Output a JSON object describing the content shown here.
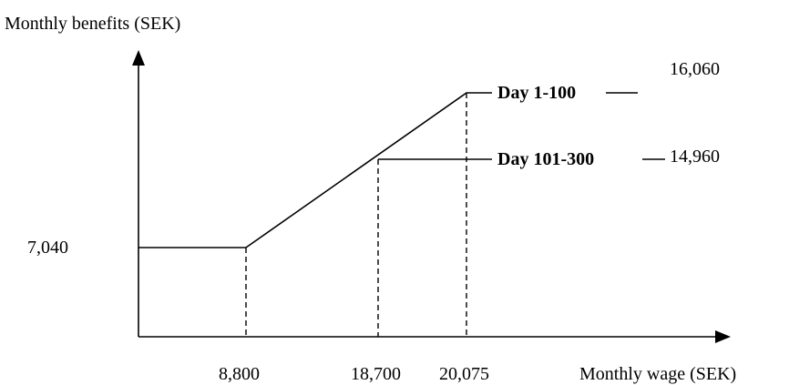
{
  "y_axis_label": "Monthly benefits (SEK)",
  "x_axis_label": "Monthly wage (SEK)",
  "y_labels": [
    "7,040"
  ],
  "x_labels": [
    "8,800",
    "18,700",
    "20,075"
  ],
  "lines": [
    {
      "label": "Day 1-100",
      "value": "16,060"
    },
    {
      "label": "Day 101-300",
      "value": "14,960"
    }
  ]
}
